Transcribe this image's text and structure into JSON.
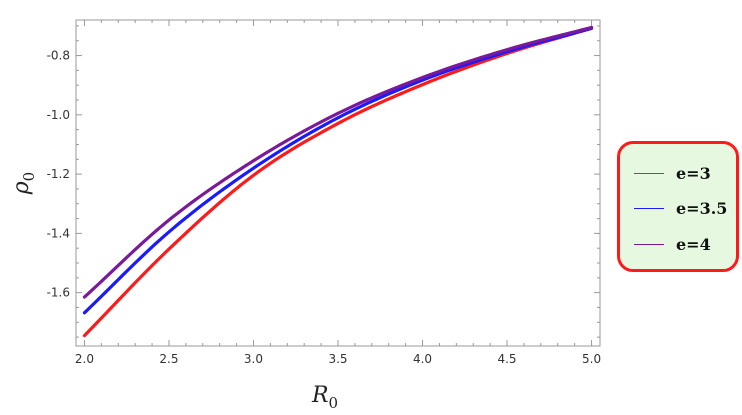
{
  "chart_data": {
    "type": "line",
    "title": "",
    "xlabel": "R",
    "xlabel_sub": "0",
    "ylabel": "ρ",
    "ylabel_sub": "0",
    "xlim": [
      1.95,
      5.05
    ],
    "ylim": [
      -1.78,
      -0.68
    ],
    "x_ticks": [
      2.0,
      2.5,
      3.0,
      3.5,
      4.0,
      4.5,
      5.0
    ],
    "x_tick_labels": [
      "2.0",
      "2.5",
      "3.0",
      "3.5",
      "4.0",
      "4.5",
      "5.0"
    ],
    "y_ticks": [
      -1.6,
      -1.4,
      -1.2,
      -1.0,
      -0.8
    ],
    "y_tick_labels": [
      "-1.6",
      "-1.4",
      "-1.2",
      "-1.0",
      "-0.8"
    ],
    "grid": false,
    "legend_placement": "right",
    "x": [
      2.0,
      2.5,
      3.0,
      3.5,
      4.0,
      4.5,
      5.0
    ],
    "series": [
      {
        "name": "e=3",
        "color": "#ff1a1a",
        "values": [
          -1.745,
          -1.453,
          -1.204,
          -1.029,
          -0.898,
          -0.793,
          -0.708
        ]
      },
      {
        "name": "e=3.5",
        "color": "#1a1aff",
        "values": [
          -1.668,
          -1.395,
          -1.18,
          -1.01,
          -0.883,
          -0.787,
          -0.708
        ]
      },
      {
        "name": "e=4",
        "color": "#7a1a99",
        "values": [
          -1.615,
          -1.355,
          -1.155,
          -0.995,
          -0.874,
          -0.78,
          -0.705
        ]
      }
    ]
  }
}
